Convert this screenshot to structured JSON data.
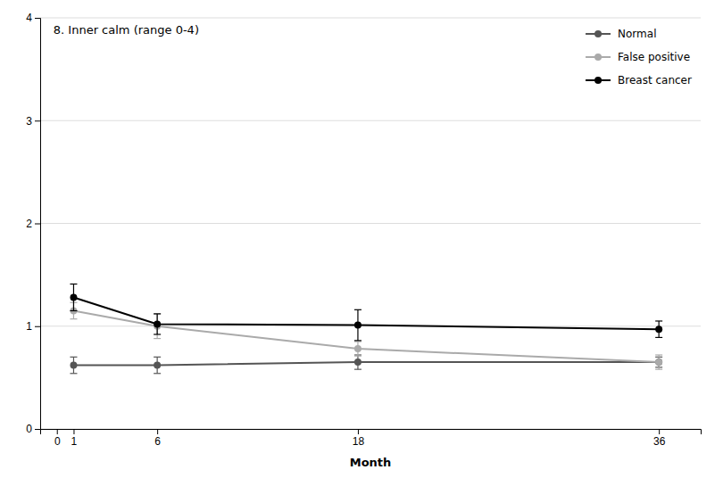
{
  "chart_data": {
    "type": "line",
    "title": "8. Inner calm (range 0-4)",
    "x_label": "Month",
    "x": [
      1,
      6,
      18,
      36
    ],
    "xlim": [
      -1,
      38.5
    ],
    "xticks": [
      0,
      1,
      6,
      18,
      36
    ],
    "ylim": [
      0,
      4
    ],
    "yticks": [
      0,
      1,
      2,
      3,
      4
    ],
    "grid": true,
    "legend": "upper right",
    "marker": "o",
    "series": [
      {
        "name": "Normal",
        "color": "#555555",
        "values": [
          0.62,
          0.62,
          0.65,
          0.65
        ],
        "yerr_lo": [
          0.08,
          0.08,
          0.07,
          0.05
        ],
        "yerr_hi": [
          0.08,
          0.08,
          0.07,
          0.05
        ]
      },
      {
        "name": "False positive",
        "color": "#aaaaaa",
        "values": [
          1.15,
          1.0,
          0.78,
          0.65
        ],
        "yerr_lo": [
          0.08,
          0.12,
          0.07,
          0.07
        ],
        "yerr_hi": [
          0.08,
          0.12,
          0.07,
          0.07
        ]
      },
      {
        "name": "Breast cancer",
        "color": "#000000",
        "values": [
          1.28,
          1.02,
          1.01,
          0.97
        ],
        "yerr_lo": [
          0.13,
          0.1,
          0.15,
          0.08
        ],
        "yerr_hi": [
          0.13,
          0.1,
          0.15,
          0.08
        ]
      }
    ]
  }
}
